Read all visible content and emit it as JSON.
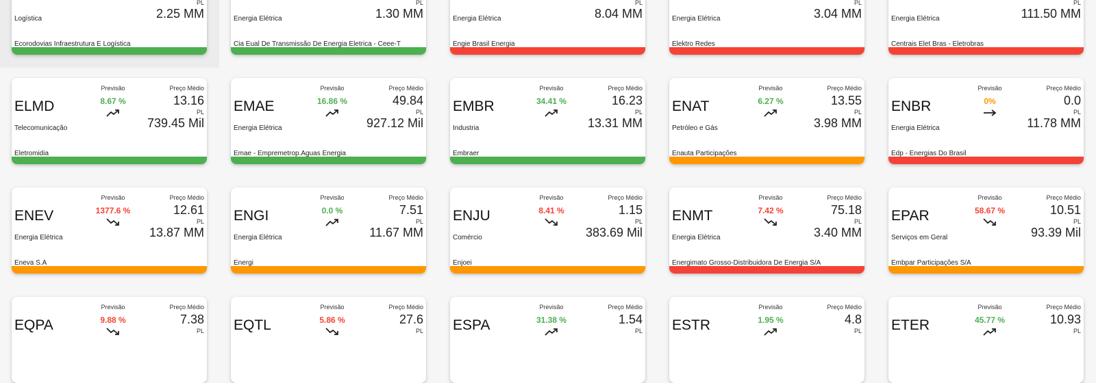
{
  "labels": {
    "previsao": "Previsão",
    "preco_medio": "Preço Médio",
    "pl": "PL"
  },
  "colors": {
    "green": "#4caf50",
    "red": "#f44336",
    "orange": "#ff9800"
  },
  "rows": [
    {
      "cards": [
        {
          "ticker": "",
          "sector": "Logística",
          "previsao": "",
          "preco": "",
          "pl": "2.25 MM",
          "company": "Ecorodovias Infraestrutura E Logística",
          "trend": "",
          "prev_color": "green",
          "status": "green"
        },
        {
          "ticker": "",
          "sector": "Energia Elétrica",
          "previsao": "",
          "preco": "",
          "pl": "1.30 MM",
          "company": "Cia Eual De Transmissão De Energia Eletrica - Ceee-T",
          "trend": "",
          "prev_color": "green",
          "status": "green"
        },
        {
          "ticker": "",
          "sector": "Energia Elétrica",
          "previsao": "",
          "preco": "",
          "pl": "8.04 MM",
          "company": "Engie Brasil Energia",
          "trend": "",
          "prev_color": "green",
          "status": "red"
        },
        {
          "ticker": "",
          "sector": "Energia Elétrica",
          "previsao": "",
          "preco": "",
          "pl": "3.04 MM",
          "company": "Elektro Redes",
          "trend": "",
          "prev_color": "green",
          "status": "red"
        },
        {
          "ticker": "",
          "sector": "Energia Elétrica",
          "previsao": "",
          "preco": "",
          "pl": "111.50 MM",
          "company": "Centrais Elet Bras  - Eletrobras",
          "trend": "",
          "prev_color": "green",
          "status": "red"
        }
      ]
    },
    {
      "cards": [
        {
          "ticker": "ELMD",
          "sector": "Telecomunicação",
          "previsao": "8.67 %",
          "preco": "13.16",
          "pl": "739.45 Mil",
          "company": "Eletromidia",
          "trend": "up",
          "prev_color": "green",
          "status": "green"
        },
        {
          "ticker": "EMAE",
          "sector": "Energia Elétrica",
          "previsao": "16.86 %",
          "preco": "49.84",
          "pl": "927.12 Mil",
          "company": "Emae - Empremetrop.Aguas Energia",
          "trend": "up",
          "prev_color": "green",
          "status": "green"
        },
        {
          "ticker": "EMBR",
          "sector": "Industria",
          "previsao": "34.41 %",
          "preco": "16.23",
          "pl": "13.31 MM",
          "company": "Embraer",
          "trend": "up",
          "prev_color": "green",
          "status": "green"
        },
        {
          "ticker": "ENAT",
          "sector": "Petróleo e Gás",
          "previsao": "6.27 %",
          "preco": "13.55",
          "pl": "3.98 MM",
          "company": "Enauta Participações",
          "trend": "up",
          "prev_color": "green",
          "status": "orange"
        },
        {
          "ticker": "ENBR",
          "sector": "Energia Elétrica",
          "previsao": "0%",
          "preco": "0.0",
          "pl": "11.78 MM",
          "company": "Edp - Energias Do Brasil",
          "trend": "flat",
          "prev_color": "orange",
          "status": "red"
        }
      ]
    },
    {
      "cards": [
        {
          "ticker": "ENEV",
          "sector": "Energia Elétrica",
          "previsao": "1377.6 %",
          "preco": "12.61",
          "pl": "13.87 MM",
          "company": "Eneva S.A",
          "trend": "down",
          "prev_color": "red",
          "status": "orange"
        },
        {
          "ticker": "ENGI",
          "sector": "Energia Elétrica",
          "previsao": "0.0 %",
          "preco": "7.51",
          "pl": "11.67 MM",
          "company": "Energi",
          "trend": "up",
          "prev_color": "green",
          "status": "orange"
        },
        {
          "ticker": "ENJU",
          "sector": "Comércio",
          "previsao": "8.41 %",
          "preco": "1.15",
          "pl": "383.69 Mil",
          "company": "Enjoei",
          "trend": "down",
          "prev_color": "red",
          "status": "orange"
        },
        {
          "ticker": "ENMT",
          "sector": "Energia Elétrica",
          "previsao": "7.42 %",
          "preco": "75.18",
          "pl": "3.40 MM",
          "company": "Energimato Grosso-Distribuidora De Energia S/A",
          "trend": "down",
          "prev_color": "red",
          "status": "red"
        },
        {
          "ticker": "EPAR",
          "sector": "Serviços em Geral",
          "previsao": "58.67 %",
          "preco": "10.51",
          "pl": "93.39 Mil",
          "company": "Embpar Participações S/A",
          "trend": "down",
          "prev_color": "red",
          "status": "orange"
        }
      ]
    },
    {
      "cards": [
        {
          "ticker": "EQPA",
          "sector": "",
          "previsao": "9.88 %",
          "preco": "7.38",
          "pl": "",
          "company": "",
          "trend": "down",
          "prev_color": "red",
          "status": ""
        },
        {
          "ticker": "EQTL",
          "sector": "",
          "previsao": "5.86 %",
          "preco": "27.6",
          "pl": "",
          "company": "",
          "trend": "down",
          "prev_color": "red",
          "status": ""
        },
        {
          "ticker": "ESPA",
          "sector": "",
          "previsao": "31.38 %",
          "preco": "1.54",
          "pl": "",
          "company": "",
          "trend": "up",
          "prev_color": "green",
          "status": ""
        },
        {
          "ticker": "ESTR",
          "sector": "",
          "previsao": "1.95 %",
          "preco": "4.8",
          "pl": "",
          "company": "",
          "trend": "up",
          "prev_color": "green",
          "status": ""
        },
        {
          "ticker": "ETER",
          "sector": "",
          "previsao": "45.77 %",
          "preco": "10.93",
          "pl": "",
          "company": "",
          "trend": "up",
          "prev_color": "green",
          "status": ""
        }
      ]
    }
  ]
}
